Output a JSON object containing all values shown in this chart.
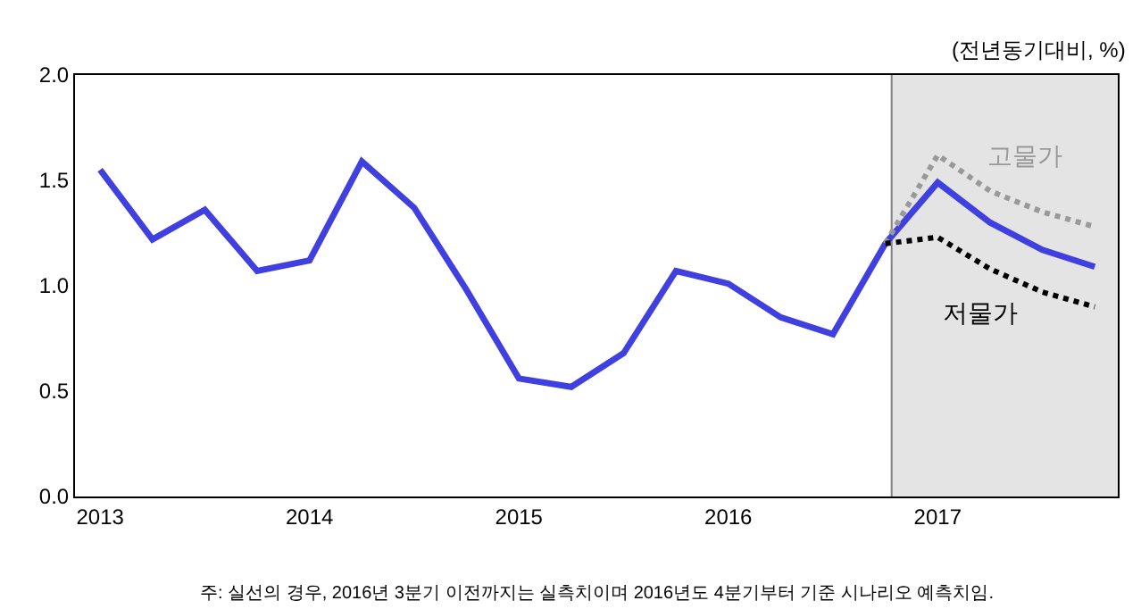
{
  "chart_data": {
    "type": "line",
    "x": [
      2013,
      2013.25,
      2013.5,
      2013.75,
      2014,
      2014.25,
      2014.5,
      2014.75,
      2015,
      2015.25,
      2015.5,
      2015.75,
      2016,
      2016.25,
      2016.5,
      2016.75,
      2017,
      2017.25,
      2017.5,
      2017.75
    ],
    "series": [
      {
        "color": "#4040e0",
        "line_style": "solid",
        "values": [
          1.55,
          1.22,
          1.36,
          1.07,
          1.12,
          1.59,
          1.37,
          0.98,
          0.56,
          0.52,
          0.68,
          1.07,
          1.01,
          0.85,
          0.77,
          1.2,
          1.49,
          1.3,
          1.17,
          1.09
        ]
      },
      {
        "name": "고물가",
        "color": "#999999",
        "line_style": "dotted",
        "x": [
          2016.75,
          2017,
          2017.25,
          2017.5,
          2017.75
        ],
        "values": [
          1.2,
          1.62,
          1.45,
          1.35,
          1.28
        ]
      },
      {
        "name": "저물가",
        "color": "#000000",
        "line_style": "dotted",
        "x": [
          2016.75,
          2017,
          2017.25,
          2017.5,
          2017.75
        ],
        "values": [
          1.2,
          1.23,
          1.08,
          0.97,
          0.9
        ]
      }
    ],
    "xlim": [
      2012.88,
      2017.86
    ],
    "xticks": [
      2013,
      2014,
      2015,
      2016,
      2017
    ],
    "ylim": [
      0,
      2
    ],
    "yticks": [
      {
        "value": 0,
        "label": "0.0"
      },
      {
        "value": 0.5,
        "label": "0.5"
      },
      {
        "value": 1,
        "label": "1.0"
      },
      {
        "value": 1.5,
        "label": "1.5"
      },
      {
        "value": 2,
        "label": "2.0"
      }
    ],
    "bands": [
      {
        "axis": "x",
        "from": 2016.78,
        "to": 2017.86,
        "color": "#e4e4e4"
      }
    ],
    "ref_lines": [
      {
        "axis": "x",
        "value": 2016.78,
        "color": "#808080"
      }
    ],
    "annotations": [
      "(전년동기대비, %)",
      "주: 실선의 경우, 2016년 3분기 이전까지는 실측치이며 2016년도 4분기부터 기준 시나리오 예측치임."
    ],
    "grid": false,
    "legend": false,
    "marker": "none"
  }
}
